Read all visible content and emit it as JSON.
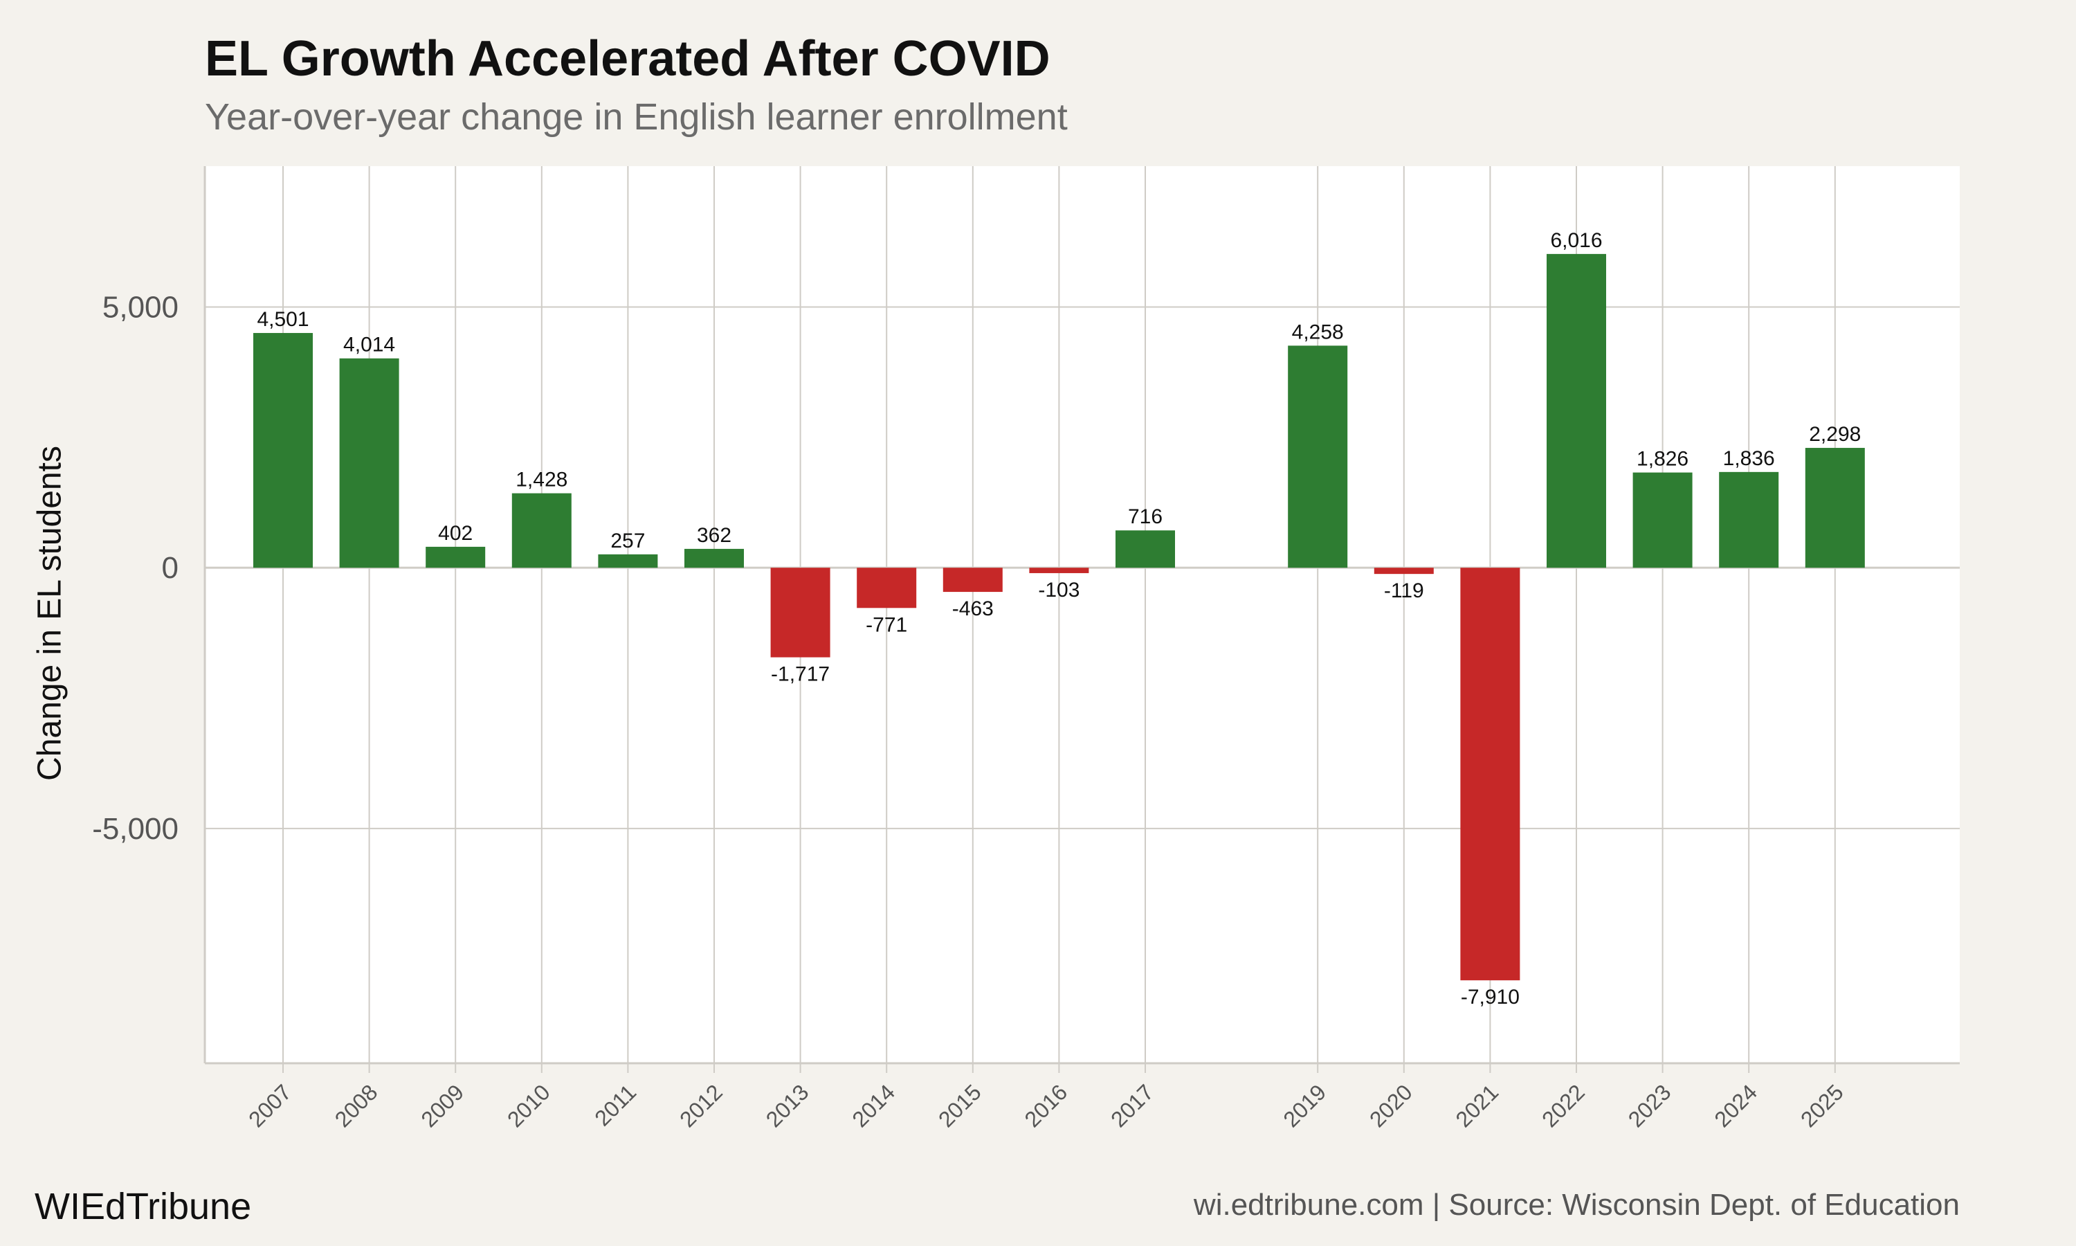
{
  "chart_data": {
    "type": "bar",
    "title": "EL Growth Accelerated After COVID",
    "subtitle": "Year-over-year change in English learner enrollment",
    "xlabel": "",
    "ylabel": "Change in EL students",
    "categories": [
      "2007",
      "2008",
      "2009",
      "2010",
      "2011",
      "2012",
      "2013",
      "2014",
      "2015",
      "2016",
      "2017",
      "2019",
      "2020",
      "2021",
      "2022",
      "2023",
      "2024",
      "2025"
    ],
    "values": [
      4501,
      4014,
      402,
      1428,
      257,
      362,
      -1717,
      -771,
      -463,
      -103,
      716,
      4258,
      -119,
      -7910,
      6016,
      1826,
      1836,
      2298
    ],
    "data_labels": [
      "4,501",
      "4,014",
      "402",
      "1,428",
      "257",
      "362",
      "-1,717",
      "-771",
      "-463",
      "-103",
      "716",
      "4,258",
      "-119",
      "-7,910",
      "6,016",
      "1,826",
      "1,836",
      "2,298"
    ],
    "y_ticks": [
      5000,
      0,
      -5000
    ],
    "y_tick_labels": [
      "5,000",
      "0",
      "-5,000"
    ],
    "ylim": [
      -9500,
      7700
    ],
    "grid": true,
    "colors": {
      "positive": "#2e7d32",
      "negative": "#c62828",
      "background": "#f4f2ed",
      "panel": "#ffffff",
      "grid": "#cfccc6"
    }
  },
  "footer": {
    "brand": "WIEdTribune",
    "source": "wi.edtribune.com | Source: Wisconsin Dept. of Education"
  }
}
